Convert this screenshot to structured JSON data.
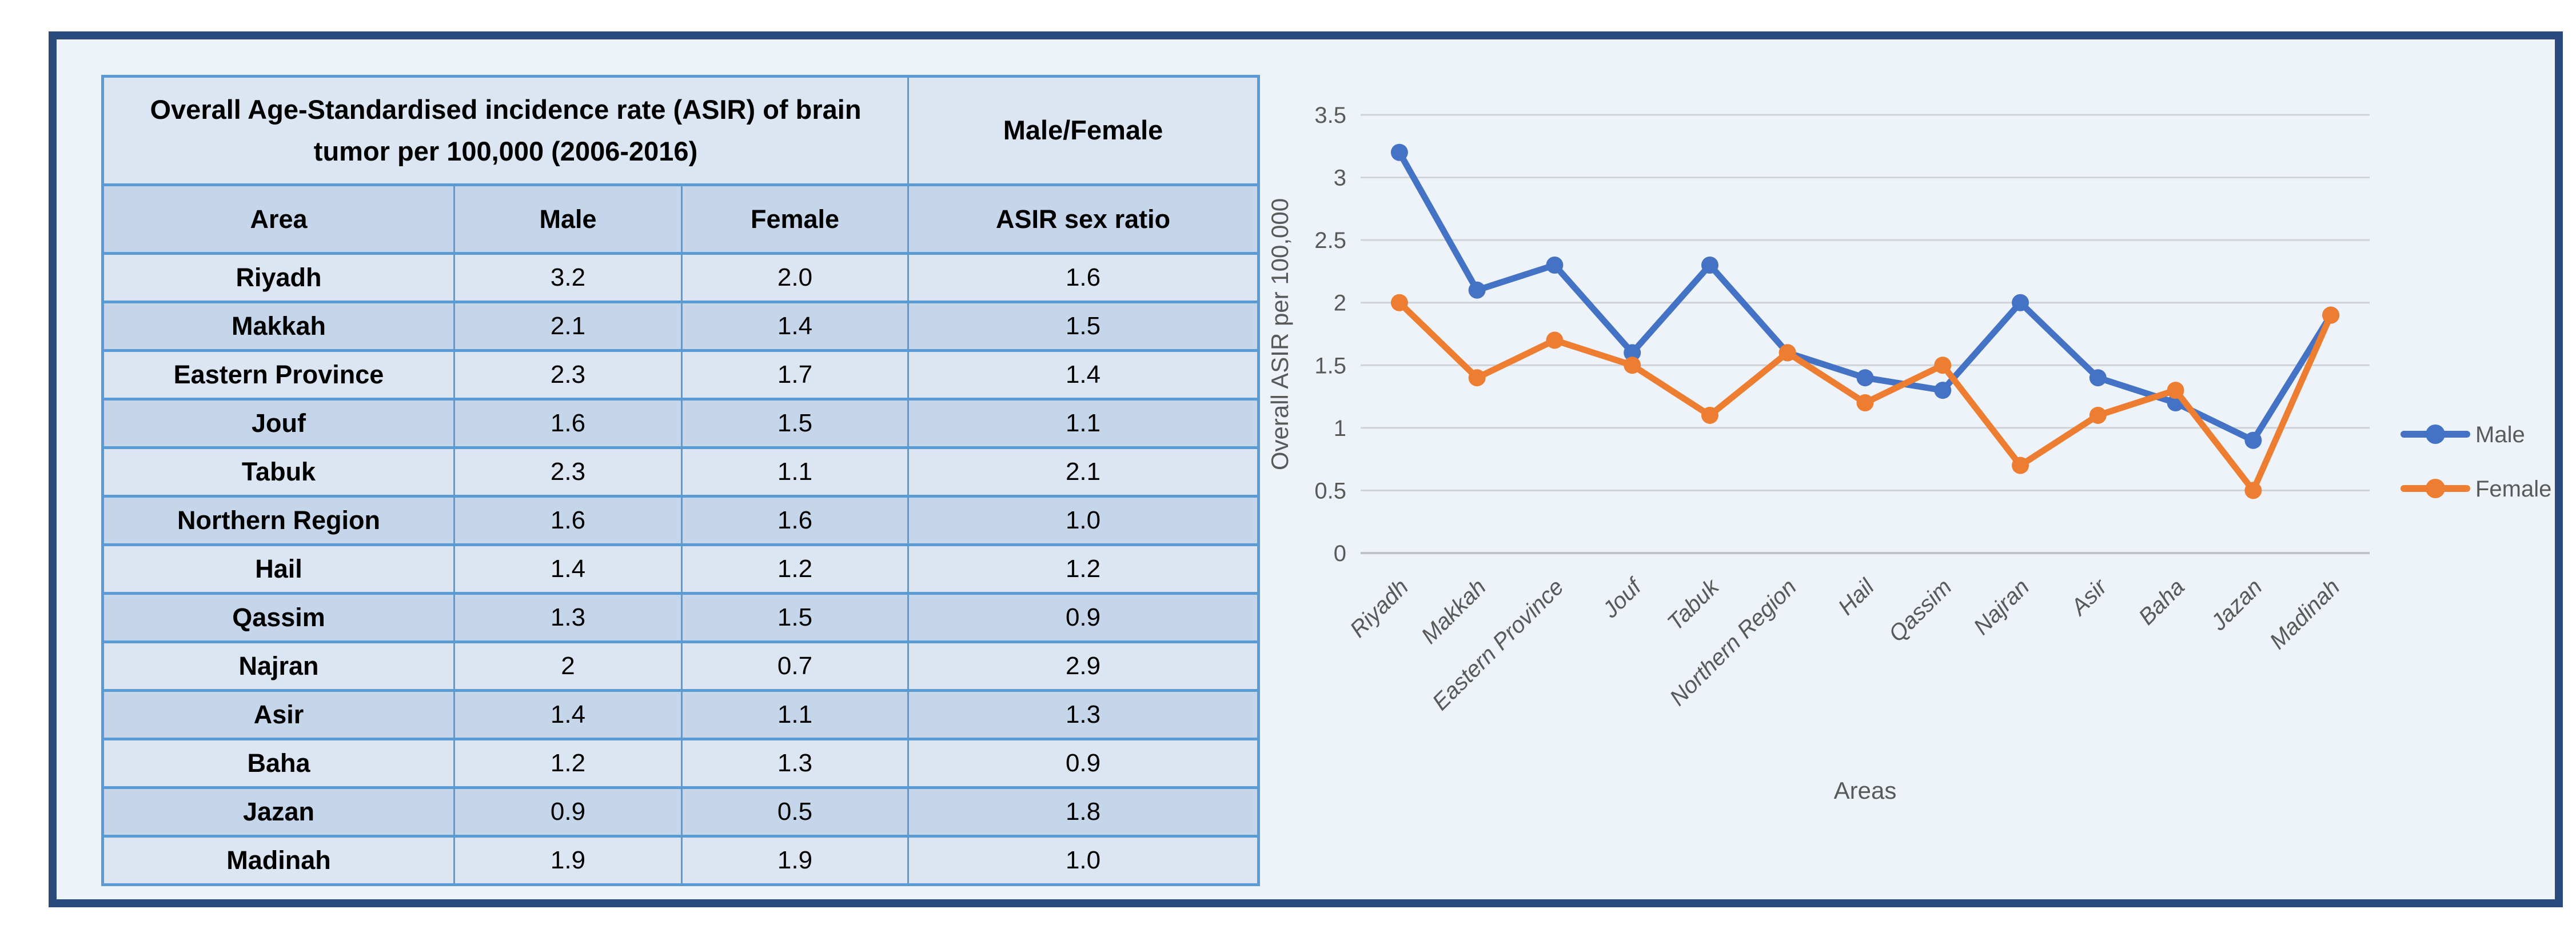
{
  "frame": {
    "border_color": "#2b4b7e",
    "background_color": "#eef3f9"
  },
  "table": {
    "title": "Overall Age-Standardised incidence rate (ASIR) of brain tumor per 100,000 (2006-2016)",
    "ratio_header": "Male/Female",
    "columns": {
      "area": "Area",
      "male": "Male",
      "female": "Female",
      "ratio": "ASIR sex ratio"
    },
    "border_color": "#5b9bd5",
    "row_fill_light": "#dce6f2",
    "row_fill_dark": "#c5d5ea",
    "rows": [
      {
        "area": "Riyadh",
        "male": "3.2",
        "female": "2.0",
        "ratio": "1.6"
      },
      {
        "area": "Makkah",
        "male": "2.1",
        "female": "1.4",
        "ratio": "1.5"
      },
      {
        "area": "Eastern Province",
        "male": "2.3",
        "female": "1.7",
        "ratio": "1.4"
      },
      {
        "area": "Jouf",
        "male": "1.6",
        "female": "1.5",
        "ratio": "1.1"
      },
      {
        "area": "Tabuk",
        "male": "2.3",
        "female": "1.1",
        "ratio": "2.1"
      },
      {
        "area": "Northern Region",
        "male": "1.6",
        "female": "1.6",
        "ratio": "1.0"
      },
      {
        "area": "Hail",
        "male": "1.4",
        "female": "1.2",
        "ratio": "1.2"
      },
      {
        "area": "Qassim",
        "male": "1.3",
        "female": "1.5",
        "ratio": "0.9"
      },
      {
        "area": "Najran",
        "male": "2",
        "female": "0.7",
        "ratio": "2.9"
      },
      {
        "area": "Asir",
        "male": "1.4",
        "female": "1.1",
        "ratio": "1.3"
      },
      {
        "area": "Baha",
        "male": "1.2",
        "female": "1.3",
        "ratio": "0.9"
      },
      {
        "area": "Jazan",
        "male": "0.9",
        "female": "0.5",
        "ratio": "1.8"
      },
      {
        "area": "Madinah",
        "male": "1.9",
        "female": "1.9",
        "ratio": "1.0"
      }
    ]
  },
  "chart_data": {
    "type": "line",
    "categories": [
      "Riyadh",
      "Makkah",
      "Eastern Province",
      "Jouf",
      "Tabuk",
      "Northern Region",
      "Hail",
      "Qassim",
      "Najran",
      "Asir",
      "Baha",
      "Jazan",
      "Madinah"
    ],
    "series": [
      {
        "name": "Male",
        "color": "#4472c4",
        "values": [
          3.2,
          2.1,
          2.3,
          1.6,
          2.3,
          1.6,
          1.4,
          1.3,
          2.0,
          1.4,
          1.2,
          0.9,
          1.9
        ]
      },
      {
        "name": "Female",
        "color": "#ed7d31",
        "values": [
          2.0,
          1.4,
          1.7,
          1.5,
          1.1,
          1.6,
          1.2,
          1.5,
          0.7,
          1.1,
          1.3,
          0.5,
          1.9
        ]
      }
    ],
    "title": "",
    "xlabel": "Areas",
    "ylabel": "Overall ASIR per 100,000",
    "ylim": [
      0,
      3.5
    ],
    "ytick_step": 0.5,
    "yticks": [
      "0",
      "0.5",
      "1",
      "1.5",
      "2",
      "2.5",
      "3",
      "3.5"
    ],
    "grid": true,
    "legend_position": "right",
    "gridline_color": "#d0d3d6",
    "axis_text_color": "#595959"
  }
}
